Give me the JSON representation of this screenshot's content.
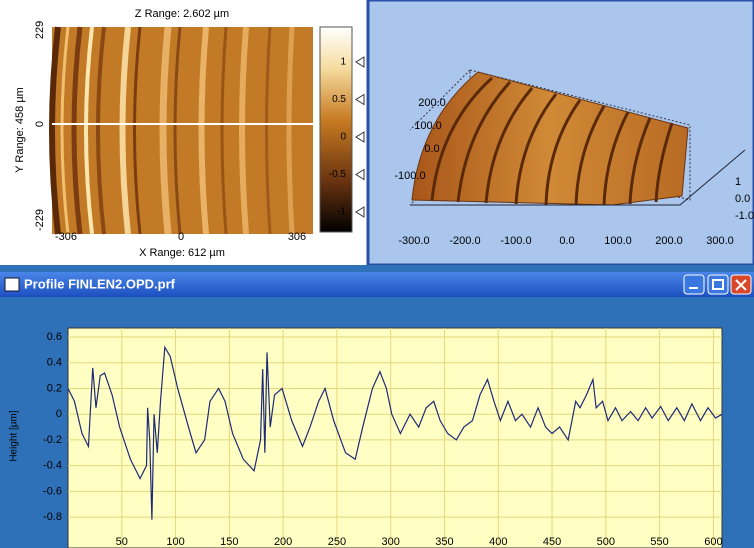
{
  "left_panel": {
    "z_range": "Z Range: 2.602 µm",
    "y_range": "Y Range: 458 µm",
    "x_range": "X Range: 612 µm",
    "y_ticks": [
      "229",
      "0",
      "-229"
    ],
    "x_ticks": [
      "-306",
      "0",
      "306"
    ],
    "colorbar_ticks": [
      "1",
      "0.5",
      "0",
      "-0.5",
      "-1"
    ]
  },
  "right_panel": {
    "y_ticks": [
      "200.0",
      "100.0",
      "0.0",
      "-100.0"
    ],
    "x_ticks": [
      "-300.0",
      "-200.0",
      "-100.0",
      "0.0",
      "100.0",
      "200.0",
      "300.0"
    ],
    "z_ticks": [
      "1",
      "0.0",
      "-1.0"
    ]
  },
  "chart_data": {
    "type": "line",
    "title": "Profile FINLEN2.OPD.prf",
    "y_label": "Height [µm]",
    "x": [
      0,
      6,
      13,
      19,
      23,
      26,
      30,
      34,
      41,
      48,
      58,
      67,
      73,
      74,
      76,
      78,
      80,
      83,
      86,
      90,
      95,
      102,
      112,
      119,
      127,
      132,
      140,
      146,
      153,
      163,
      173,
      179,
      181,
      183,
      185,
      188,
      192,
      199,
      208,
      218,
      225,
      233,
      239,
      247,
      258,
      267,
      274,
      283,
      290,
      296,
      301,
      309,
      318,
      326,
      333,
      340,
      346,
      353,
      361,
      368,
      376,
      383,
      390,
      396,
      402,
      409,
      416,
      422,
      430,
      437,
      444,
      450,
      457,
      465,
      472,
      476,
      482,
      488,
      491,
      497,
      502,
      509,
      515,
      523,
      530,
      537,
      543,
      551,
      558,
      566,
      573,
      580,
      588,
      595,
      602,
      608
    ],
    "series": [
      {
        "color": "#1e2a78",
        "values": [
          0.2,
          0.1,
          -0.15,
          -0.25,
          0.36,
          0.05,
          0.3,
          0.32,
          0.15,
          -0.1,
          -0.35,
          -0.5,
          -0.4,
          0.05,
          -0.2,
          -0.82,
          0.0,
          -0.3,
          0.1,
          0.52,
          0.45,
          0.2,
          -0.1,
          -0.3,
          -0.2,
          0.1,
          0.2,
          0.1,
          -0.15,
          -0.35,
          -0.44,
          -0.2,
          0.35,
          -0.3,
          0.48,
          -0.1,
          0.15,
          0.2,
          -0.05,
          -0.25,
          -0.1,
          0.1,
          0.2,
          -0.05,
          -0.3,
          -0.35,
          -0.1,
          0.2,
          0.33,
          0.2,
          0.0,
          -0.15,
          0.0,
          -0.1,
          0.05,
          0.1,
          -0.05,
          -0.15,
          -0.2,
          -0.1,
          -0.05,
          0.15,
          0.27,
          0.1,
          -0.05,
          0.1,
          -0.05,
          0.0,
          -0.1,
          0.05,
          -0.1,
          -0.15,
          -0.1,
          -0.2,
          0.1,
          0.05,
          0.15,
          0.27,
          0.05,
          0.1,
          -0.05,
          0.05,
          -0.05,
          0.02,
          -0.05,
          0.05,
          -0.03,
          0.06,
          -0.05,
          0.05,
          -0.05,
          0.08,
          -0.05,
          0.05,
          -0.03,
          0.0
        ]
      }
    ],
    "xlim": [
      0,
      608
    ],
    "ylim": [
      -1.04,
      0.67
    ],
    "xticks": [
      50,
      100,
      150,
      200,
      250,
      300,
      350,
      400,
      450,
      500,
      550,
      600
    ],
    "yticks": [
      0.6,
      0.4,
      0.2,
      0,
      -0.2,
      -0.4,
      -0.6,
      -0.8
    ],
    "grid": true,
    "background": "#ffffc4",
    "grid_color": "#e3d77a"
  }
}
